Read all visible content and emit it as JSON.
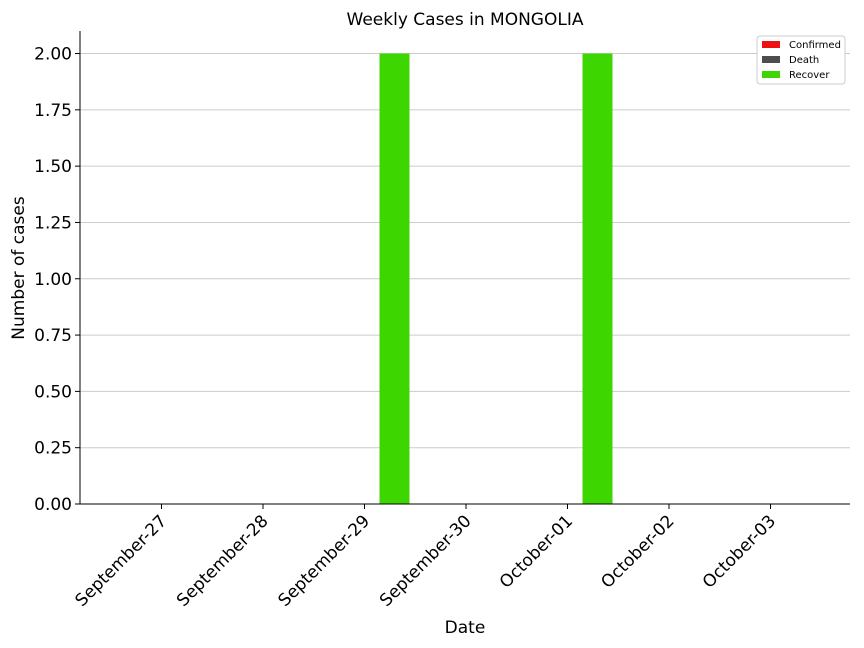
{
  "chart_data": {
    "type": "bar",
    "title": "Weekly Cases in MONGOLIA",
    "xlabel": "Date",
    "ylabel": "Number of cases",
    "categories": [
      "September-27",
      "September-28",
      "September-29",
      "September-30",
      "October-01",
      "October-02",
      "October-03"
    ],
    "series": [
      {
        "name": "Confirmed",
        "color": "#ee1111",
        "values": [
          0,
          0,
          0,
          0,
          0,
          0,
          0
        ]
      },
      {
        "name": "Death",
        "color": "#4d4d4d",
        "values": [
          0,
          0,
          0,
          0,
          0,
          0,
          0
        ]
      },
      {
        "name": "Recover",
        "color": "#3dd600",
        "values": [
          0,
          0,
          2,
          0,
          2,
          0,
          0
        ]
      }
    ],
    "ylim": [
      0,
      2.1
    ],
    "yticks": [
      "0.00",
      "0.25",
      "0.50",
      "0.75",
      "1.00",
      "1.25",
      "1.50",
      "1.75",
      "2.00"
    ],
    "grid": "horizontal",
    "legend": "top-right"
  }
}
